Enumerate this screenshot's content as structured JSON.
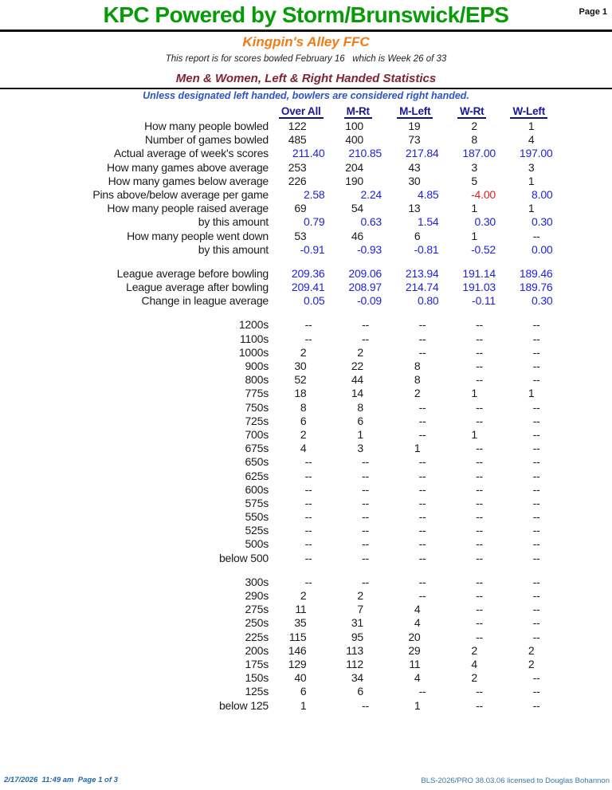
{
  "page": {
    "title": "KPC Powered by Storm/Brunswick/EPS",
    "page_label": "Page 1",
    "center_name": "Kingpin's Alley FFC",
    "report_line": "This report is for scores bowled February 16   which is Week 26 of 33",
    "section_heading": "Men & Women, Left & Right Handed Statistics",
    "note": "Unless designated left handed, bowlers are considered right handed."
  },
  "colors": {
    "title_green": "#089b08",
    "center_orange": "#ee7d18",
    "heading_maroon": "#822334",
    "note_blue": "#2e52c8",
    "header_navy": "#181899",
    "value_blue": "#2121dd",
    "negative_red": "#e02020",
    "footer_blue": "#2166ab"
  },
  "table": {
    "columns": [
      "Over All",
      "M-Rt",
      "M-Left",
      "W-Rt",
      "W-Left"
    ],
    "sections": [
      {
        "name": "weekly-stats",
        "rows": [
          {
            "label": "How many people bowled",
            "values": [
              "122",
              "100",
              "19",
              "2",
              "1"
            ],
            "style": "black"
          },
          {
            "label": "Number of games bowled",
            "values": [
              "485",
              "400",
              "73",
              "8",
              "4"
            ],
            "style": "black"
          },
          {
            "label": "Actual average of week's scores",
            "values": [
              "211.40",
              "210.85",
              "217.84",
              "187.00",
              "197.00"
            ],
            "style": "blue"
          },
          {
            "label": "How many games above average",
            "values": [
              "253",
              "204",
              "43",
              "3",
              "3"
            ],
            "style": "black"
          },
          {
            "label": "How many games below average",
            "values": [
              "226",
              "190",
              "30",
              "5",
              "1"
            ],
            "style": "black"
          },
          {
            "label": "Pins above/below average per game",
            "values": [
              "2.58",
              "2.24",
              "4.85",
              "-4.00",
              "8.00"
            ],
            "style": "blue",
            "red_negatives": true
          },
          {
            "label": "How many people raised average",
            "values": [
              "69",
              "54",
              "13",
              "1",
              "1"
            ],
            "style": "black"
          },
          {
            "label": "by this amount",
            "values": [
              "0.79",
              "0.63",
              "1.54",
              "0.30",
              "0.30"
            ],
            "style": "blue"
          },
          {
            "label": "How many people went down",
            "values": [
              "53",
              "46",
              "6",
              "1",
              "--"
            ],
            "style": "black"
          },
          {
            "label": "by this amount",
            "values": [
              "-0.91",
              "-0.93",
              "-0.81",
              "-0.52",
              "0.00"
            ],
            "style": "blue"
          }
        ]
      },
      {
        "name": "league-averages",
        "rows": [
          {
            "label": "League average before bowling",
            "values": [
              "209.36",
              "209.06",
              "213.94",
              "191.14",
              "189.46"
            ],
            "style": "blue"
          },
          {
            "label": "League average after bowling",
            "values": [
              "209.41",
              "208.97",
              "214.74",
              "191.03",
              "189.76"
            ],
            "style": "blue"
          },
          {
            "label": "Change in league average",
            "values": [
              "0.05",
              "-0.09",
              "0.80",
              "-0.11",
              "0.30"
            ],
            "style": "blue"
          }
        ]
      },
      {
        "name": "series-distribution",
        "rows": [
          {
            "label": "1200s",
            "values": [
              "--",
              "--",
              "--",
              "--",
              "--"
            ],
            "style": "black"
          },
          {
            "label": "1100s",
            "values": [
              "--",
              "--",
              "--",
              "--",
              "--"
            ],
            "style": "black"
          },
          {
            "label": "1000s",
            "values": [
              "2",
              "2",
              "--",
              "--",
              "--"
            ],
            "style": "black"
          },
          {
            "label": "900s",
            "values": [
              "30",
              "22",
              "8",
              "--",
              "--"
            ],
            "style": "black"
          },
          {
            "label": "800s",
            "values": [
              "52",
              "44",
              "8",
              "--",
              "--"
            ],
            "style": "black"
          },
          {
            "label": "775s",
            "values": [
              "18",
              "14",
              "2",
              "1",
              "1"
            ],
            "style": "black"
          },
          {
            "label": "750s",
            "values": [
              "8",
              "8",
              "--",
              "--",
              "--"
            ],
            "style": "black"
          },
          {
            "label": "725s",
            "values": [
              "6",
              "6",
              "--",
              "--",
              "--"
            ],
            "style": "black"
          },
          {
            "label": "700s",
            "values": [
              "2",
              "1",
              "--",
              "1",
              "--"
            ],
            "style": "black"
          },
          {
            "label": "675s",
            "values": [
              "4",
              "3",
              "1",
              "--",
              "--"
            ],
            "style": "black"
          },
          {
            "label": "650s",
            "values": [
              "--",
              "--",
              "--",
              "--",
              "--"
            ],
            "style": "black"
          },
          {
            "label": "625s",
            "values": [
              "--",
              "--",
              "--",
              "--",
              "--"
            ],
            "style": "black"
          },
          {
            "label": "600s",
            "values": [
              "--",
              "--",
              "--",
              "--",
              "--"
            ],
            "style": "black"
          },
          {
            "label": "575s",
            "values": [
              "--",
              "--",
              "--",
              "--",
              "--"
            ],
            "style": "black"
          },
          {
            "label": "550s",
            "values": [
              "--",
              "--",
              "--",
              "--",
              "--"
            ],
            "style": "black"
          },
          {
            "label": "525s",
            "values": [
              "--",
              "--",
              "--",
              "--",
              "--"
            ],
            "style": "black"
          },
          {
            "label": "500s",
            "values": [
              "--",
              "--",
              "--",
              "--",
              "--"
            ],
            "style": "black"
          },
          {
            "label": "below 500",
            "values": [
              "--",
              "--",
              "--",
              "--",
              "--"
            ],
            "style": "black"
          }
        ]
      },
      {
        "name": "game-distribution",
        "rows": [
          {
            "label": "300s",
            "values": [
              "--",
              "--",
              "--",
              "--",
              "--"
            ],
            "style": "black"
          },
          {
            "label": "290s",
            "values": [
              "2",
              "2",
              "--",
              "--",
              "--"
            ],
            "style": "black"
          },
          {
            "label": "275s",
            "values": [
              "11",
              "7",
              "4",
              "--",
              "--"
            ],
            "style": "black"
          },
          {
            "label": "250s",
            "values": [
              "35",
              "31",
              "4",
              "--",
              "--"
            ],
            "style": "black"
          },
          {
            "label": "225s",
            "values": [
              "115",
              "95",
              "20",
              "--",
              "--"
            ],
            "style": "black"
          },
          {
            "label": "200s",
            "values": [
              "146",
              "113",
              "29",
              "2",
              "2"
            ],
            "style": "black"
          },
          {
            "label": "175s",
            "values": [
              "129",
              "112",
              "11",
              "4",
              "2"
            ],
            "style": "black"
          },
          {
            "label": "150s",
            "values": [
              "40",
              "34",
              "4",
              "2",
              "--"
            ],
            "style": "black"
          },
          {
            "label": "125s",
            "values": [
              "6",
              "6",
              "--",
              "--",
              "--"
            ],
            "style": "black"
          },
          {
            "label": "below 125",
            "values": [
              "1",
              "--",
              "1",
              "--",
              "--"
            ],
            "style": "black"
          }
        ]
      }
    ]
  },
  "footer": {
    "left": "2/17/2026  11:49 am  Page 1 of 3",
    "right": "BLS-2026/PRO 38.03.06 licensed to Douglas Bohannon"
  }
}
